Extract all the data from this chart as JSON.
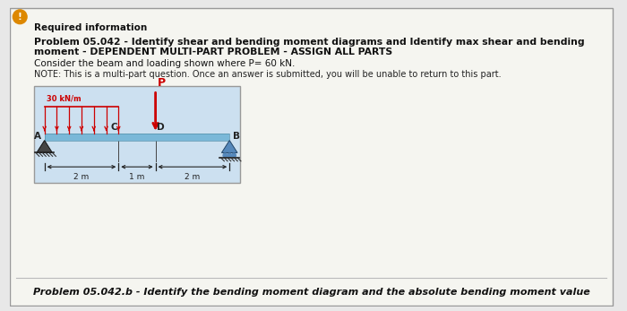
{
  "bg_color": "#e8e8e8",
  "panel_bg": "#f5f5f0",
  "border_color": "#999999",
  "title_required": "Required information",
  "title_bold_line1": "Problem 05.042 - Identify shear and bending moment diagrams and Identify max shear and bending",
  "title_bold_line2": "moment - DEPENDENT MULTI-PART PROBLEM - ASSIGN ALL PARTS",
  "subtitle1": "Consider the beam and loading shown where P= 60 kN.",
  "subtitle2": "NOTE: This is a multi-part question. Once an answer is submitted, you will be unable to return to this part.",
  "footer": "Problem 05.042.b - Identify the bending moment diagram and the absolute bending moment value",
  "beam_color": "#7ab8d8",
  "dist_load_color": "#cc0000",
  "arrow_color": "#cc0000",
  "diagram_bg": "#cce0f0",
  "diagram_border": "#999999",
  "support_fill_A": "#444444",
  "support_fill_B": "#5588bb",
  "dim_color": "#222222",
  "label_color": "#222222",
  "footer_bg": "#e8e8e8"
}
